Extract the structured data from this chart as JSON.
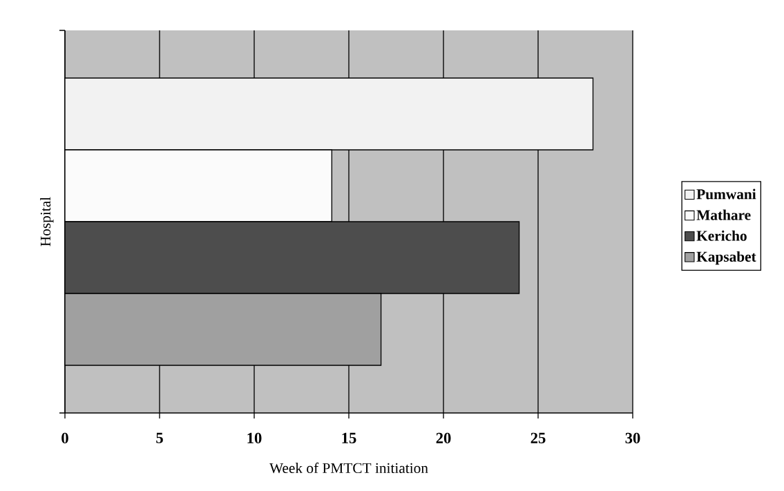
{
  "chart_data": {
    "type": "bar",
    "orientation": "horizontal",
    "categories": [
      null
    ],
    "xlabel": "Week of PMTCT initiation",
    "ylabel": "Hospital",
    "xlim": [
      0,
      30
    ],
    "xticks": [
      0,
      5,
      10,
      15,
      20,
      25,
      30
    ],
    "grid": "x",
    "legend": "right",
    "series": [
      {
        "name": "Pumwani",
        "color": "#f2f2f2",
        "values": [
          27.9
        ]
      },
      {
        "name": "Mathare",
        "color": "#fbfbfb",
        "values": [
          14.1
        ]
      },
      {
        "name": "Kericho",
        "color": "#4d4d4d",
        "values": [
          24.0
        ]
      },
      {
        "name": "Kapsabet",
        "color": "#a0a0a0",
        "values": [
          16.7
        ]
      }
    ]
  }
}
